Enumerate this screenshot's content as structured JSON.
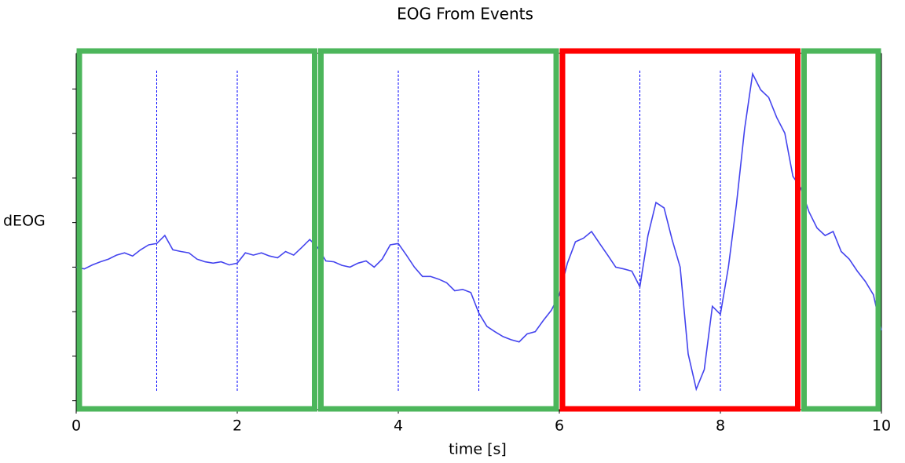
{
  "chart_data": {
    "type": "line",
    "title": "EOG From Events",
    "xlabel": "time [s]",
    "ylabel": "dEOG",
    "x": [
      0,
      0.1,
      0.2,
      0.3,
      0.4,
      0.5,
      0.6,
      0.7,
      0.8,
      0.9,
      1,
      1.1,
      1.2,
      1.3,
      1.4,
      1.5,
      1.6,
      1.7,
      1.8,
      1.9,
      2,
      2.1,
      2.2,
      2.3,
      2.4,
      2.5,
      2.6,
      2.7,
      2.8,
      2.9,
      3,
      3.1,
      3.2,
      3.3,
      3.4,
      3.5,
      3.6,
      3.7,
      3.8,
      3.9,
      4,
      4.1,
      4.2,
      4.3,
      4.4,
      4.5,
      4.6,
      4.7,
      4.8,
      4.9,
      5,
      5.1,
      5.2,
      5.3,
      5.4,
      5.5,
      5.6,
      5.7,
      5.8,
      5.9,
      6,
      6.1,
      6.2,
      6.3,
      6.4,
      6.5,
      6.6,
      6.7,
      6.8,
      6.9,
      7,
      7.1,
      7.2,
      7.3,
      7.4,
      7.5,
      7.6,
      7.7,
      7.8,
      7.9,
      8,
      8.1,
      8.2,
      8.3,
      8.4,
      8.5,
      8.6,
      8.7,
      8.8,
      8.9,
      9,
      9.1,
      9.2,
      9.3,
      9.4,
      9.5,
      9.6,
      9.7,
      9.8,
      9.9,
      10
    ],
    "series": [
      {
        "name": "dEOG",
        "color": "#4444ee",
        "values": [
          0,
          -0.04,
          0.05,
          0.12,
          0.18,
          0.27,
          0.32,
          0.25,
          0.39,
          0.5,
          0.53,
          0.71,
          0.39,
          0.35,
          0.32,
          0.18,
          0.12,
          0.09,
          0.12,
          0.05,
          0.09,
          0.32,
          0.27,
          0.32,
          0.25,
          0.21,
          0.35,
          0.27,
          0.44,
          0.62,
          0.44,
          0.14,
          0.12,
          0.04,
          0,
          0.09,
          0.14,
          0,
          0.18,
          0.5,
          0.53,
          0.27,
          0,
          -0.21,
          -0.21,
          -0.27,
          -0.35,
          -0.53,
          -0.5,
          -0.57,
          -1.03,
          -1.33,
          -1.45,
          -1.56,
          -1.63,
          -1.68,
          -1.5,
          -1.45,
          -1.2,
          -0.97,
          -0.62,
          0.09,
          0.57,
          0.65,
          0.8,
          0.53,
          0.27,
          0,
          -0.04,
          -0.09,
          -0.44,
          0.71,
          1.45,
          1.33,
          0.62,
          0,
          -1.95,
          -2.74,
          -2.3,
          -0.88,
          -1.06,
          0,
          1.42,
          3.1,
          4.34,
          3.98,
          3.81,
          3.36,
          3.01,
          2.04,
          1.77,
          1.24,
          0.88,
          0.71,
          0.8,
          0.35,
          0.18,
          -0.09,
          -0.32,
          -0.62,
          -1.42
        ]
      }
    ],
    "event_times": [
      1,
      2,
      4,
      5,
      7,
      8
    ],
    "event_color": "#0000ff",
    "regions": [
      {
        "x": [
          0,
          3
        ],
        "color": "#4cb65b"
      },
      {
        "x": [
          3,
          6
        ],
        "color": "#4cb65b"
      },
      {
        "x": [
          6,
          9
        ],
        "color": "#ff0000"
      },
      {
        "x": [
          9,
          10
        ],
        "color": "#4cb65b"
      }
    ],
    "xlim": [
      0,
      10
    ],
    "xticks": [
      0,
      2,
      4,
      6,
      8,
      10
    ],
    "ylim": [
      -3.2,
      4.8
    ],
    "yticks": [
      -3,
      -2,
      -1,
      0,
      1,
      2,
      3,
      4
    ]
  }
}
